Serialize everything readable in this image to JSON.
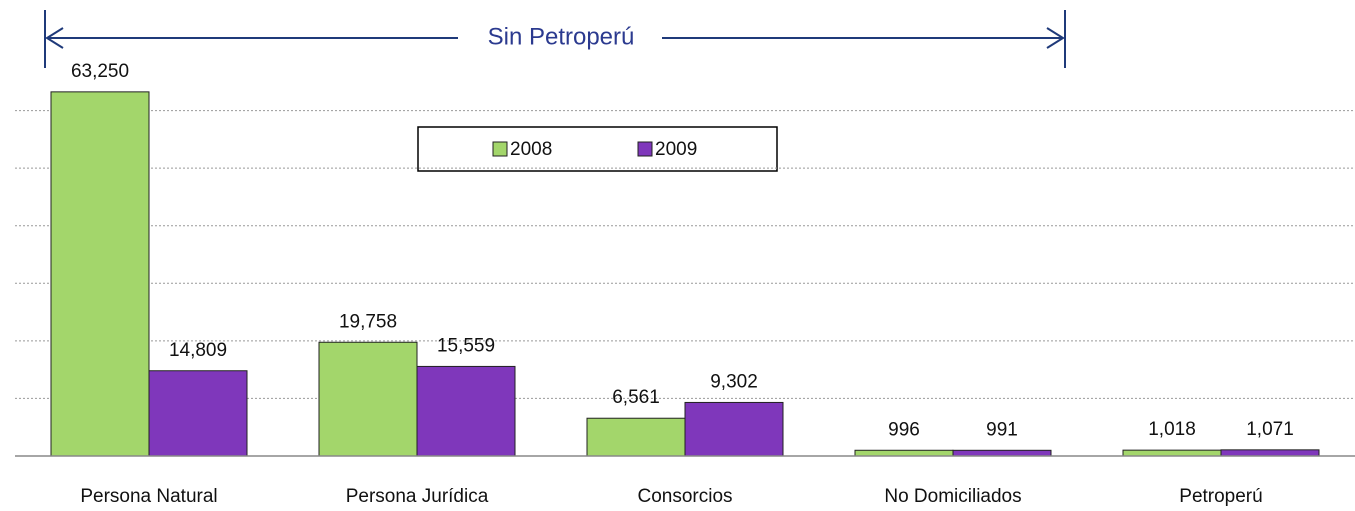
{
  "chart_data": {
    "type": "bar",
    "annotation": "Sin Petroperú",
    "categories": [
      "Persona Natural",
      "Persona Jurídica",
      "Consorcios",
      "No Domiciliados",
      "Petroperú"
    ],
    "series": [
      {
        "name": "2008",
        "color": "#a3d66b",
        "values": [
          63250,
          19758,
          6561,
          996,
          1018
        ],
        "value_labels": [
          "63,250",
          "19,758",
          "6,561",
          "996",
          "1,018"
        ]
      },
      {
        "name": "2009",
        "color": "#7f37bb",
        "values": [
          14809,
          15559,
          9302,
          991,
          1071
        ],
        "value_labels": [
          "14,809",
          "15,559",
          "9,302",
          "991",
          "1,071"
        ]
      }
    ],
    "ylim": [
      0,
      70000
    ],
    "yticks": [
      0,
      10000,
      20000,
      30000,
      40000,
      50000,
      60000
    ],
    "grid": true,
    "legend": "top"
  }
}
